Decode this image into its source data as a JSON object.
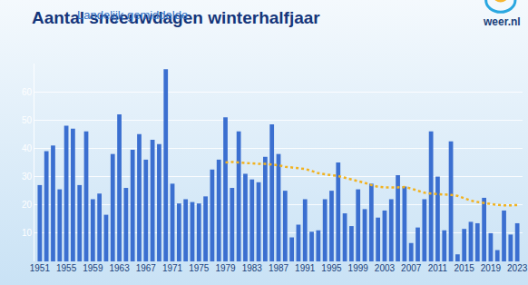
{
  "chart_data": {
    "type": "bar",
    "title": "Aantal sneeuwdagen winterhalfjaar",
    "subtitle": "Landelijk gemiddelde",
    "annotations": [
      "weer.nl"
    ],
    "categories": [
      "1951",
      null,
      null,
      null,
      "1955",
      null,
      null,
      null,
      "1959",
      null,
      null,
      null,
      "1963",
      null,
      null,
      null,
      "1967",
      null,
      null,
      null,
      "1971",
      null,
      null,
      null,
      "1975",
      null,
      null,
      null,
      "1979",
      null,
      null,
      null,
      "1983",
      null,
      null,
      null,
      "1987",
      null,
      null,
      null,
      "1991",
      null,
      null,
      null,
      "1995",
      null,
      null,
      null,
      "1999",
      null,
      null,
      null,
      "2003",
      null,
      null,
      null,
      "2007",
      null,
      null,
      null,
      "2011",
      null,
      null,
      null,
      "2015",
      null,
      null,
      null,
      "2019",
      null,
      null,
      null,
      "2023"
    ],
    "series": [
      {
        "type": "bar",
        "color": "#3b6fd0",
        "values": [
          27,
          39,
          41,
          25.5,
          48,
          47,
          27,
          46,
          22,
          24,
          16.5,
          38,
          52,
          26,
          39.5,
          45,
          36,
          43,
          41.5,
          68,
          27.5,
          20.5,
          22,
          21,
          20.5,
          23,
          32.5,
          36,
          51,
          26,
          46,
          31,
          29,
          28,
          37,
          48.5,
          38,
          25,
          8.5,
          13,
          22,
          10.5,
          11,
          22,
          25,
          35,
          17,
          12.5,
          25.5,
          18.5,
          27.5,
          15.5,
          18,
          22,
          30.5,
          26.5,
          6.5,
          12,
          22,
          46,
          30,
          11,
          42.5,
          2.5,
          11.5,
          14,
          13.5,
          22.5,
          10,
          4,
          18,
          9.5,
          13.5
        ]
      },
      {
        "type": "line",
        "color": "#f2b21f",
        "line_style": "dotted",
        "values": [
          null,
          null,
          null,
          null,
          null,
          null,
          null,
          null,
          null,
          null,
          null,
          null,
          null,
          null,
          null,
          null,
          null,
          null,
          null,
          null,
          null,
          null,
          null,
          null,
          null,
          null,
          null,
          null,
          35,
          35.2,
          35,
          34.8,
          34.6,
          34.5,
          34.5,
          34.3,
          34,
          33.5,
          33.2,
          33,
          32.7,
          32,
          31.2,
          30.8,
          30.5,
          30.2,
          29.6,
          29,
          28.5,
          27.8,
          27,
          26.4,
          26.2,
          26.1,
          26.2,
          26.3,
          25.8,
          25,
          24.3,
          24,
          23.9,
          23.7,
          23.5,
          23.2,
          22.3,
          21.5,
          21,
          20.6,
          20.2,
          20,
          19.8,
          19.8,
          19.9
        ]
      }
    ],
    "ylim": [
      0,
      70
    ],
    "yticks": [
      10,
      20,
      30,
      40,
      50,
      60
    ],
    "grid": true
  }
}
